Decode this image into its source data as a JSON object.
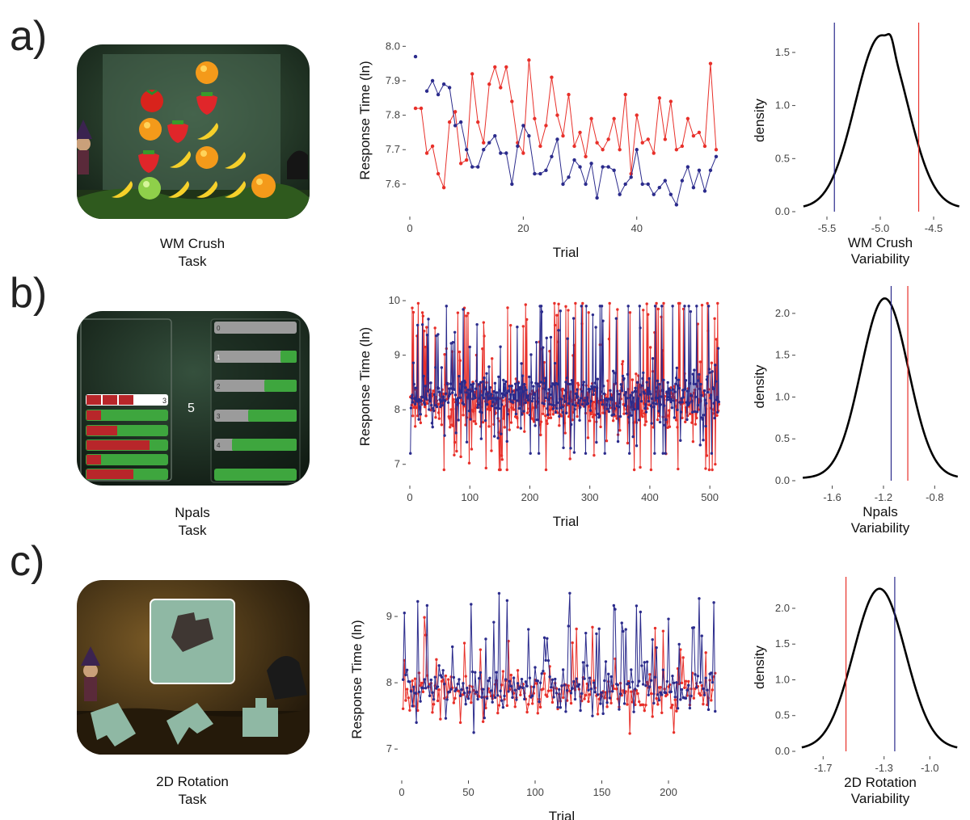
{
  "panels": [
    {
      "letter": "a)",
      "screenshot": {
        "caption_line1": "WM Crush",
        "caption_line2": "Task",
        "icon": "fruit-grid-game-screenshot",
        "colors": {
          "bg": "#1e2f22",
          "overlay": "#3d5a44",
          "ground": "#2c4a22"
        }
      },
      "timeseries": {
        "type": "line",
        "ylabel": "Response Time (ln)",
        "xlabel": "Trial",
        "xlim": [
          0,
          55
        ],
        "ylim": [
          7.52,
          8.05
        ],
        "xticks": [
          0,
          20,
          40
        ],
        "yticks": [
          7.6,
          7.7,
          7.8,
          7.9,
          8.0
        ],
        "ytick_labels": [
          "7.6",
          "7.7",
          "7.8",
          "7.9",
          "8.0"
        ],
        "series": [
          {
            "name": "blue",
            "color": "#2b2b8c",
            "start": 1,
            "values": [
              7.97,
              null,
              7.87,
              7.9,
              7.86,
              7.89,
              7.88,
              7.77,
              7.78,
              7.7,
              7.65,
              7.65,
              7.7,
              7.72,
              7.74,
              7.69,
              7.69,
              7.6,
              7.71,
              7.77,
              7.74,
              7.63,
              7.63,
              7.64,
              7.68,
              7.73,
              7.6,
              7.62,
              7.67,
              7.65,
              7.6,
              7.66,
              7.56,
              7.65,
              7.65,
              7.64,
              7.57,
              7.6,
              7.62,
              7.7,
              7.6,
              7.6,
              7.57,
              7.59,
              7.61,
              7.57,
              7.54,
              7.61,
              7.65,
              7.59,
              7.64,
              7.58,
              7.64,
              7.68
            ]
          },
          {
            "name": "red",
            "color": "#e8302a",
            "start": 1,
            "values": [
              7.82,
              7.82,
              7.69,
              7.71,
              7.63,
              7.59,
              7.78,
              7.81,
              7.66,
              7.67,
              7.92,
              7.78,
              7.72,
              7.89,
              7.94,
              7.88,
              7.94,
              7.84,
              7.72,
              7.69,
              7.96,
              7.79,
              7.71,
              7.77,
              7.91,
              7.8,
              7.74,
              7.86,
              7.71,
              7.75,
              7.68,
              7.79,
              7.72,
              7.7,
              7.73,
              7.79,
              7.7,
              7.86,
              7.63,
              7.8,
              7.72,
              7.73,
              7.69,
              7.85,
              7.73,
              7.84,
              7.7,
              7.71,
              7.79,
              7.74,
              7.75,
              7.71,
              7.95,
              7.7
            ]
          }
        ]
      },
      "density": {
        "type": "area",
        "ylabel": "density",
        "xlabel_line1": "WM Crush",
        "xlabel_line2": "Variability",
        "xlim": [
          -5.75,
          -4.25
        ],
        "ylim": [
          0,
          1.72
        ],
        "xticks": [
          -5.5,
          -5.0,
          -4.5
        ],
        "xtick_labels": [
          "-5.5",
          "-5.0",
          "-4.5"
        ],
        "yticks": [
          0,
          0.5,
          1.0,
          1.5
        ],
        "ytick_labels": [
          "0.0",
          "0.5",
          "1.0",
          "1.5"
        ],
        "curve": {
          "mean": -4.99,
          "sd": 0.245,
          "xrange": [
            -5.72,
            -4.26
          ],
          "bumps": [
            [
              -4.9,
              0.03,
              0.06
            ]
          ]
        },
        "vlines": [
          {
            "x": -5.43,
            "color": "#2b2b8c"
          },
          {
            "x": -4.64,
            "color": "#e8302a"
          }
        ]
      }
    },
    {
      "letter": "b)",
      "screenshot": {
        "caption_line1": "Npals",
        "caption_line2": "Task",
        "icon": "bar-matching-game-screenshot",
        "center_number": "5",
        "row_label_top": "3",
        "right_labels": [
          "0",
          "1",
          "2",
          "3",
          "4"
        ],
        "colors": {
          "bg": "#1b2a1f",
          "red": "#b8262a",
          "green": "#3ea63e",
          "grey": "#9b9b9b"
        }
      },
      "timeseries": {
        "type": "line",
        "ylabel": "Response Time (ln)",
        "xlabel": "Trial",
        "xlim": [
          0,
          520
        ],
        "ylim": [
          6.7,
          10.15
        ],
        "xticks": [
          0,
          100,
          200,
          300,
          400,
          500
        ],
        "yticks": [
          7,
          8,
          9,
          10
        ],
        "ytick_labels": [
          "7",
          "8",
          "9",
          "10"
        ],
        "series": [
          {
            "name": "blue",
            "color": "#2b2b8c",
            "n": 515,
            "seed": 11,
            "base": 8.25,
            "spread": 0.55,
            "spikeProb": 0.16,
            "spikeAmp": 1.4,
            "min": 7.2,
            "max": 9.9,
            "varGrowth": 0.35
          },
          {
            "name": "red",
            "color": "#e8302a",
            "n": 515,
            "seed": 29,
            "base": 8.1,
            "spread": 0.6,
            "spikeProb": 0.2,
            "spikeAmp": 1.5,
            "min": 6.9,
            "max": 9.95,
            "varGrowth": 0.25
          }
        ]
      },
      "density": {
        "type": "area",
        "ylabel": "density",
        "xlabel_line1": "Npals",
        "xlabel_line2": "Variability",
        "xlim": [
          -1.85,
          -0.6
        ],
        "ylim": [
          0,
          2.25
        ],
        "xticks": [
          -1.6,
          -1.2,
          -0.8
        ],
        "xtick_labels": [
          "-1.6",
          "-1.2",
          "-0.8"
        ],
        "yticks": [
          0,
          0.5,
          1.0,
          1.5,
          2.0
        ],
        "ytick_labels": [
          "0.0",
          "0.5",
          "1.0",
          "1.5",
          "2.0"
        ],
        "curve": {
          "mean": -1.19,
          "sd": 0.185,
          "xrange": [
            -1.83,
            -0.62
          ],
          "bumps": []
        },
        "vlines": [
          {
            "x": -1.14,
            "color": "#2b2b8c"
          },
          {
            "x": -1.01,
            "color": "#e8302a"
          }
        ]
      }
    },
    {
      "letter": "c)",
      "screenshot": {
        "caption_line1": "2D Rotation",
        "caption_line2": "Task",
        "icon": "shape-rotation-game-screenshot",
        "colors": {
          "bg": "#3a2a12",
          "tile": "#8fb8a4",
          "shape": "#3f3733"
        }
      },
      "timeseries": {
        "type": "line",
        "ylabel": "Response Time (ln)",
        "xlabel": "Trial",
        "xlim": [
          0,
          240
        ],
        "ylim": [
          6.6,
          9.5
        ],
        "xticks": [
          0,
          50,
          100,
          150,
          200
        ],
        "yticks": [
          7,
          8,
          9
        ],
        "ytick_labels": [
          "7",
          "8",
          "9"
        ],
        "series": [
          {
            "name": "blue",
            "color": "#2b2b8c",
            "n": 235,
            "seed": 7,
            "base": 7.95,
            "spread": 0.55,
            "spikeProb": 0.18,
            "spikeAmp": 1.0,
            "min": 6.7,
            "max": 9.35,
            "varGrowth": 0.0
          },
          {
            "name": "red",
            "color": "#e8302a",
            "n": 235,
            "seed": 43,
            "base": 7.85,
            "spread": 0.45,
            "spikeProb": 0.1,
            "spikeAmp": 0.8,
            "min": 7.0,
            "max": 9.0,
            "varGrowth": 0.0
          }
        ]
      },
      "density": {
        "type": "area",
        "ylabel": "density",
        "xlabel_line1": "2D Rotation",
        "xlabel_line2": "Variability",
        "xlim": [
          -1.85,
          -0.8
        ],
        "ylim": [
          0,
          2.35
        ],
        "xticks": [
          -1.7,
          -1.3,
          -1.0
        ],
        "xtick_labels": [
          "-1.7",
          "-1.3",
          "-1.0"
        ],
        "yticks": [
          0,
          0.5,
          1.0,
          1.5,
          2.0
        ],
        "ytick_labels": [
          "0.0",
          "0.5",
          "1.0",
          "1.5",
          "2.0"
        ],
        "curve": {
          "mean": -1.33,
          "sd": 0.17,
          "xrange": [
            -1.84,
            -0.82
          ],
          "bumps": []
        },
        "vlines": [
          {
            "x": -1.23,
            "color": "#2b2b8c"
          },
          {
            "x": -1.55,
            "color": "#e8302a"
          }
        ]
      }
    }
  ],
  "chart_data": [
    {
      "type": "line",
      "title": "",
      "xlabel": "Trial",
      "ylabel": "Response Time (ln)",
      "panel": "a)",
      "xlim": [
        0,
        55
      ],
      "ylim": [
        7.52,
        8.05
      ],
      "series": [
        {
          "name": "blue",
          "note": "see panels[0].timeseries"
        },
        {
          "name": "red"
        }
      ]
    },
    {
      "type": "area",
      "title": "",
      "xlabel": "WM Crush Variability",
      "ylabel": "density",
      "panel": "a)",
      "vlines": [
        -5.43,
        -4.64
      ]
    },
    {
      "type": "line",
      "title": "",
      "xlabel": "Trial",
      "ylabel": "Response Time (ln)",
      "panel": "b)",
      "xlim": [
        0,
        520
      ],
      "ylim": [
        6.7,
        10.15
      ]
    },
    {
      "type": "area",
      "title": "",
      "xlabel": "Npals Variability",
      "ylabel": "density",
      "panel": "b)",
      "vlines": [
        -1.14,
        -1.01
      ]
    },
    {
      "type": "line",
      "title": "",
      "xlabel": "Trial",
      "ylabel": "Response Time (ln)",
      "panel": "c)",
      "xlim": [
        0,
        240
      ],
      "ylim": [
        6.6,
        9.5
      ]
    },
    {
      "type": "area",
      "title": "",
      "xlabel": "2D Rotation Variability",
      "ylabel": "density",
      "panel": "c)",
      "vlines": [
        -1.23,
        -1.55
      ]
    }
  ]
}
